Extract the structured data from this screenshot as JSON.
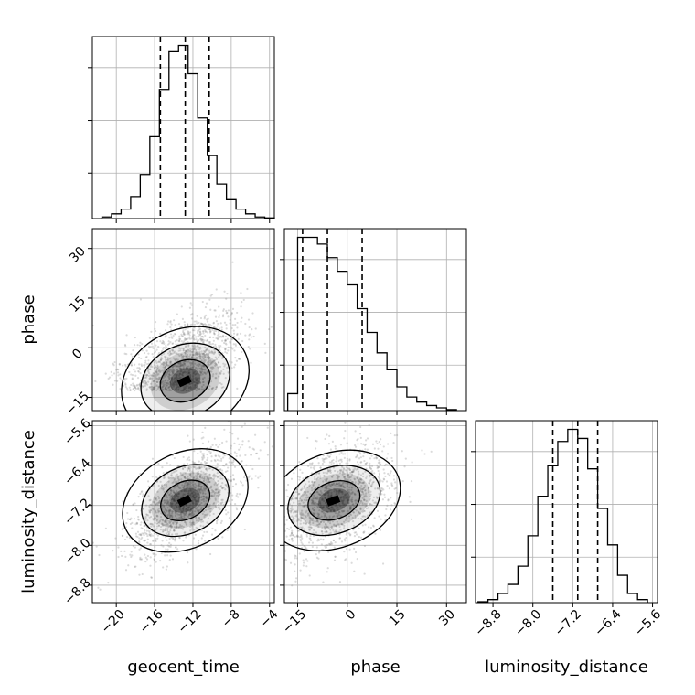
{
  "chart_data": {
    "type": "corner",
    "parameters": [
      {
        "name": "geocent_time",
        "label": "geocent_time",
        "range": [
          -22.5,
          -3.5
        ],
        "ticks": [
          -20,
          -16,
          -12,
          -8,
          -4
        ],
        "quantiles": [
          -15.4,
          -12.8,
          -10.3
        ]
      },
      {
        "name": "phase",
        "label": "phase",
        "range": [
          -19,
          36
        ],
        "ticks": [
          -15,
          0,
          15,
          30
        ],
        "quantiles": [
          -13.5,
          -6,
          4.5
        ]
      },
      {
        "name": "luminosity_distance",
        "label": "luminosity_distance",
        "range": [
          -9.15,
          -5.5
        ],
        "ticks": [
          -8.8,
          -8.0,
          -7.2,
          -6.4,
          -5.6
        ],
        "quantiles": [
          -7.6,
          -7.1,
          -6.7
        ]
      }
    ],
    "tick_labels": {
      "geocent_time": [
        "−20",
        "−16",
        "−12",
        "−8",
        "−4"
      ],
      "phase": [
        "−15",
        "0",
        "15",
        "30"
      ],
      "luminosity_distance": [
        "−8.8",
        "−8.0",
        "−7.2",
        "−6.4",
        "−5.6"
      ]
    },
    "histograms": {
      "geocent_time": {
        "bin_edges": [
          -21.5,
          -20.5,
          -19.5,
          -18.5,
          -17.5,
          -16.5,
          -15.5,
          -14.5,
          -13.5,
          -12.5,
          -11.5,
          -10.5,
          -9.5,
          -8.5,
          -7.5,
          -6.5,
          -5.5,
          -4.5,
          -3.5
        ],
        "counts": [
          0.5,
          1.5,
          3,
          7,
          14,
          26,
          41,
          53,
          55,
          46,
          32,
          20,
          11,
          6,
          3,
          1.5,
          0.5,
          0.2
        ]
      },
      "phase": {
        "bin_edges": [
          -18,
          -15,
          -12,
          -9,
          -6,
          -3,
          0,
          3,
          6,
          9,
          12,
          15,
          18,
          21,
          24,
          27,
          30,
          33
        ],
        "counts": [
          5,
          51,
          51,
          49,
          45,
          41,
          37,
          30,
          23,
          17,
          12,
          7,
          4,
          2.5,
          1.5,
          0.8,
          0.3
        ]
      },
      "luminosity_distance": {
        "bin_edges": [
          -9.1,
          -8.9,
          -8.7,
          -8.5,
          -8.3,
          -8.1,
          -7.9,
          -7.7,
          -7.5,
          -7.3,
          -7.1,
          -6.9,
          -6.7,
          -6.5,
          -6.3,
          -6.1,
          -5.9,
          -5.7
        ],
        "counts": [
          0.3,
          1,
          3,
          6,
          12,
          22,
          35,
          45,
          53,
          57,
          54,
          44,
          31,
          19,
          9,
          3,
          1
        ]
      }
    },
    "correlations": {
      "phase_vs_geocent_time": 0.5,
      "luminosity_distance_vs_geocent_time": 0.6,
      "luminosity_distance_vs_phase": 0.45
    },
    "means": {
      "geocent_time": -12.8,
      "phase": -4,
      "luminosity_distance": -7.1
    },
    "grid": true,
    "quantile_line_style": "dashed"
  },
  "colors": {
    "hist": "#000000",
    "grid": "#b0b0b0",
    "points": "#7f7f7f",
    "density": "#000000"
  }
}
